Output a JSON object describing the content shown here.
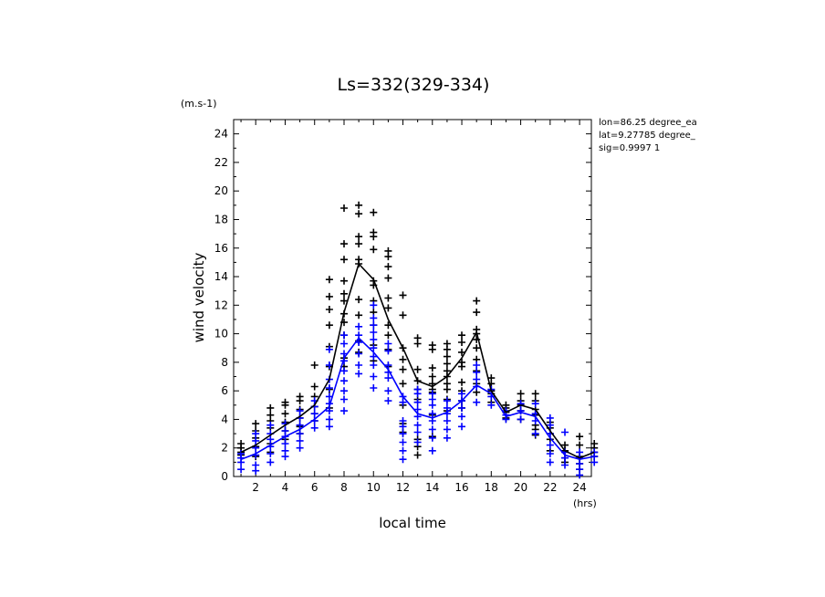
{
  "chart_data": {
    "type": "scatter",
    "title": "Ls=332(329-334)",
    "xlabel": "local time",
    "ylabel": "wind velocity",
    "xunit": "(hrs)",
    "yunit": "(m.s-1)",
    "xlim": [
      0.5,
      24.8
    ],
    "ylim": [
      0,
      25
    ],
    "xticks": [
      2,
      4,
      6,
      8,
      10,
      12,
      14,
      16,
      18,
      20,
      22,
      24
    ],
    "yticks": [
      0,
      2,
      4,
      6,
      8,
      10,
      12,
      14,
      16,
      18,
      20,
      22,
      24
    ],
    "info_lines": [
      "lon=86.25 degree_ea",
      "lat=9.27785 degree_",
      "sig=0.9997 1"
    ],
    "x": [
      1,
      2,
      3,
      4,
      5,
      6,
      7,
      8,
      9,
      10,
      11,
      12,
      13,
      14,
      15,
      16,
      17,
      18,
      19,
      20,
      21,
      22,
      23,
      24,
      25
    ],
    "series": [
      {
        "color": "#000000",
        "mean": [
          1.7,
          2.2,
          2.9,
          3.6,
          4.2,
          5.0,
          6.8,
          11.5,
          14.9,
          13.8,
          11.0,
          9.0,
          6.7,
          6.3,
          7.0,
          8.3,
          10.1,
          6.0,
          4.5,
          5.0,
          4.7,
          3.2,
          1.8,
          1.3,
          1.7
        ],
        "points": [
          [
            1.5,
            1.7,
            2.0,
            2.3
          ],
          [
            1.4,
            2.1,
            2.7,
            3.2,
            3.7
          ],
          [
            1.7,
            2.3,
            3.4,
            3.9,
            4.3,
            4.8
          ],
          [
            2.6,
            3.2,
            3.8,
            4.4,
            5.0,
            5.2
          ],
          [
            3.0,
            3.5,
            4.1,
            4.7,
            5.3,
            5.6
          ],
          [
            3.9,
            4.4,
            4.9,
            5.6,
            6.3,
            7.8
          ],
          [
            4.8,
            6.1,
            7.7,
            9.1,
            10.6,
            11.7,
            12.6,
            13.8
          ],
          [
            7.7,
            8.3,
            9.9,
            10.8,
            11.4,
            12.3,
            12.8,
            13.7,
            15.2,
            16.3,
            18.8
          ],
          [
            8.7,
            9.5,
            11.3,
            12.4,
            14.9,
            15.2,
            16.3,
            16.8,
            18.4,
            19.0
          ],
          [
            8.1,
            9.2,
            10.6,
            11.5,
            12.3,
            13.4,
            13.7,
            15.9,
            16.8,
            17.1,
            18.5
          ],
          [
            7.7,
            8.9,
            9.9,
            10.6,
            11.8,
            12.5,
            13.9,
            14.7,
            15.4,
            15.8
          ],
          [
            3.1,
            3.7,
            5.0,
            6.5,
            7.5,
            8.2,
            9.0,
            11.3,
            12.7
          ],
          [
            1.5,
            2.1,
            2.6,
            5.4,
            6.1,
            6.7,
            7.5,
            9.3,
            9.7
          ],
          [
            2.8,
            4.3,
            5.9,
            6.1,
            6.5,
            7.0,
            7.6,
            8.9,
            9.2
          ],
          [
            4.6,
            5.4,
            6.1,
            6.5,
            7.0,
            7.4,
            7.9,
            8.4,
            8.9,
            9.3
          ],
          [
            4.8,
            5.3,
            6.0,
            6.6,
            7.7,
            8.0,
            8.7,
            9.4,
            9.9
          ],
          [
            5.9,
            6.5,
            7.4,
            8.2,
            9.0,
            9.6,
            10.0,
            10.3,
            11.5,
            12.3
          ],
          [
            5.2,
            5.8,
            6.0,
            6.5,
            6.9
          ],
          [
            4.1,
            4.5,
            4.8,
            5.0
          ],
          [
            4.0,
            4.6,
            5.0,
            5.3,
            5.8
          ],
          [
            2.9,
            3.3,
            3.6,
            4.3,
            4.7,
            5.3,
            5.8
          ],
          [
            1.8,
            2.6,
            3.0,
            3.4,
            3.8
          ],
          [
            1.0,
            1.3,
            1.8,
            2.2
          ],
          [
            0.5,
            0.9,
            1.4,
            2.2,
            2.8
          ],
          [
            1.4,
            1.7,
            2.0,
            2.3
          ]
        ]
      },
      {
        "color": "#0000ff",
        "mean": [
          1.2,
          1.6,
          2.2,
          2.8,
          3.3,
          4.0,
          4.9,
          8.3,
          9.7,
          8.7,
          7.5,
          5.6,
          4.4,
          4.1,
          4.5,
          5.3,
          6.4,
          5.8,
          4.2,
          4.5,
          4.2,
          2.7,
          1.5,
          1.2,
          1.4
        ],
        "points": [
          [
            0.5,
            1.0,
            1.3,
            1.6
          ],
          [
            0.4,
            0.8,
            1.5,
            2.0,
            2.5,
            3.0
          ],
          [
            1.0,
            1.6,
            2.1,
            2.6,
            3.0,
            3.6
          ],
          [
            1.4,
            1.8,
            2.3,
            2.8,
            3.2,
            3.7
          ],
          [
            2.0,
            2.5,
            3.0,
            3.6,
            4.1,
            4.6
          ],
          [
            3.4,
            3.9,
            4.4,
            4.9,
            5.3
          ],
          [
            3.5,
            4.0,
            4.6,
            5.1,
            5.6,
            6.2,
            6.8,
            7.8,
            8.9
          ],
          [
            4.6,
            5.4,
            6.0,
            6.7,
            7.4,
            8.1,
            8.6,
            9.3,
            9.9
          ],
          [
            7.2,
            7.8,
            8.6,
            9.4,
            9.9,
            10.5
          ],
          [
            6.2,
            7.0,
            7.8,
            8.4,
            9.0,
            9.6,
            10.1,
            10.6,
            11.1,
            12.0
          ],
          [
            5.3,
            6.0,
            6.9,
            7.3,
            7.8,
            8.8,
            9.3
          ],
          [
            1.2,
            1.8,
            2.4,
            3.0,
            3.5,
            3.9,
            5.2,
            5.6
          ],
          [
            2.4,
            3.1,
            3.6,
            4.2,
            4.7,
            5.2,
            5.8,
            6.1
          ],
          [
            1.8,
            2.7,
            3.3,
            3.9,
            4.4,
            5.0,
            5.4,
            5.8
          ],
          [
            2.7,
            3.3,
            3.9,
            4.4,
            4.8,
            5.3
          ],
          [
            3.5,
            4.2,
            4.8,
            5.3,
            5.8
          ],
          [
            5.2,
            6.3,
            6.8,
            7.3,
            7.8
          ],
          [
            5.0,
            5.6,
            6.1
          ],
          [
            4.0,
            4.3,
            4.6
          ],
          [
            4.0,
            4.6,
            5.1
          ],
          [
            3.0,
            3.9,
            4.4,
            5.1
          ],
          [
            1.0,
            1.6,
            2.2,
            3.0,
            3.6,
            4.1
          ],
          [
            0.8,
            1.3,
            1.7,
            3.1
          ],
          [
            0.1,
            0.5,
            0.9,
            1.3,
            1.7
          ],
          [
            1.0,
            1.4,
            1.7
          ]
        ]
      }
    ]
  }
}
